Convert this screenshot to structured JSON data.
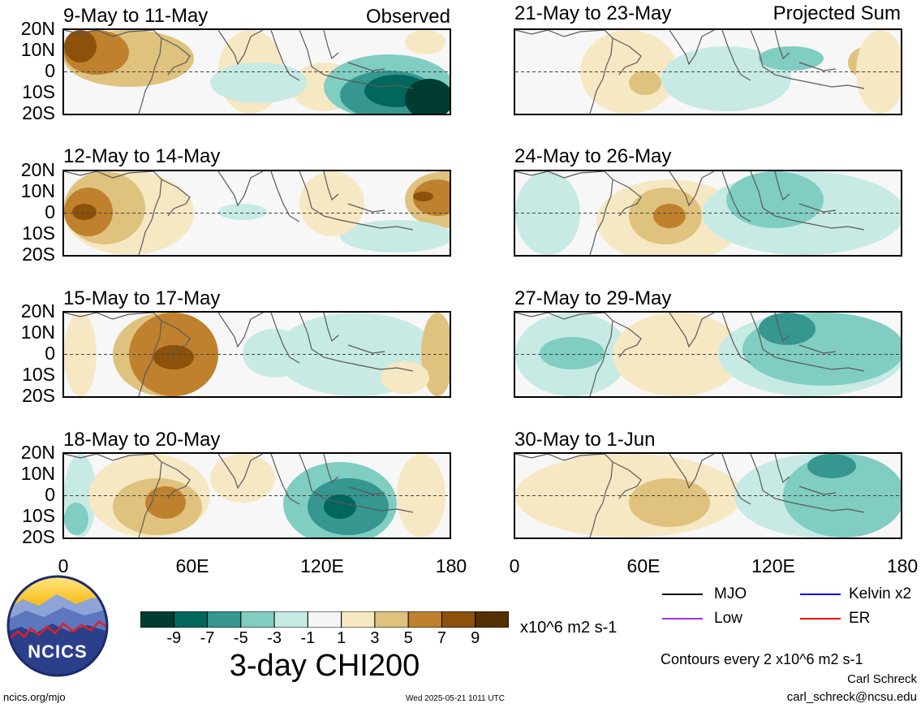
{
  "header": {
    "left_tag": "Observed",
    "right_tag": "Projected Sum"
  },
  "panels_left": [
    {
      "title": "9-May to 11-May"
    },
    {
      "title": "12-May to 14-May"
    },
    {
      "title": "15-May to 17-May"
    },
    {
      "title": "18-May to 20-May"
    }
  ],
  "panels_right": [
    {
      "title": "21-May to 23-May"
    },
    {
      "title": "24-May to 26-May"
    },
    {
      "title": "27-May to 29-May"
    },
    {
      "title": "30-May to 1-Jun"
    }
  ],
  "lat_labels": [
    "20N",
    "10N",
    "0",
    "10S",
    "20S"
  ],
  "lon_labels": [
    "0",
    "60E",
    "120E",
    "180"
  ],
  "colorbar": {
    "colors": [
      "#003c30",
      "#01665e",
      "#35978f",
      "#80cdc1",
      "#c7eae5",
      "#f5f5f5",
      "#f6e8c3",
      "#dfc27d",
      "#bf812d",
      "#8c510a",
      "#543005"
    ],
    "labels": [
      "-9",
      "-7",
      "-5",
      "-3",
      "-1",
      "1",
      "3",
      "5",
      "7",
      "9"
    ],
    "units": "x10^6 m2 s-1",
    "title": "3-day CHI200"
  },
  "legend": {
    "items": [
      {
        "label": "MJO",
        "color": "#000000"
      },
      {
        "label": "Kelvin x2",
        "color": "#0000ff"
      },
      {
        "label": "Low",
        "color": "#9933ff"
      },
      {
        "label": "ER",
        "color": "#ff0000"
      }
    ],
    "contour_note": "Contours every 2 x10^6 m2 s-1"
  },
  "credits": {
    "author": "Carl Schreck",
    "email": "carl_schreck@ncsu.edu",
    "site": "ncics.org/mjo",
    "timestamp": "Wed 2025-05-21 1011 UTC",
    "logo_text": "NCICS"
  }
}
